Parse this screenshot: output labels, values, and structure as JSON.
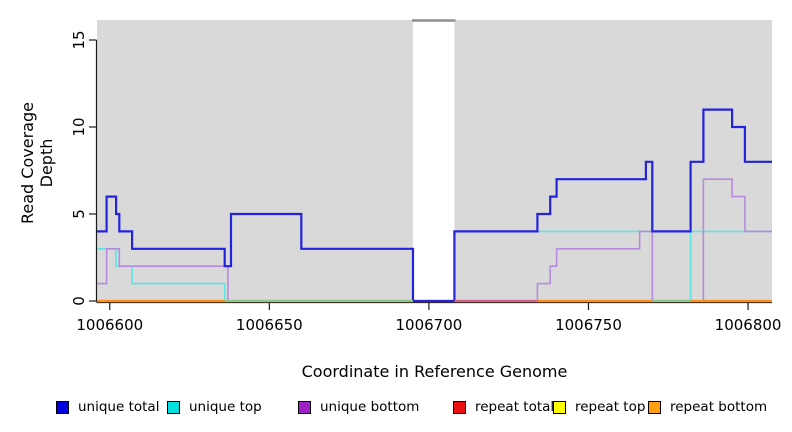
{
  "chart_data": {
    "type": "line",
    "subtype": "step-coverage",
    "title": "",
    "xlabel": "Coordinate in Reference Genome",
    "ylabel": "Read Coverage Depth",
    "xlim": [
      1006596,
      1006807.5
    ],
    "ylim": [
      0,
      16.15
    ],
    "xticks": [
      1006600,
      1006650,
      1006700,
      1006750,
      1006800
    ],
    "yticks": [
      0,
      5,
      10,
      15
    ],
    "grid": false,
    "legend_position": "bottom",
    "plot_background": "#d9d9d9",
    "gap_lid_color": "#8f8f8f",
    "axis_color": "#1a1a1a",
    "coverage_gap": {
      "from": 1006695,
      "to": 1006708
    },
    "series": [
      {
        "name": "unique total",
        "color": "#2323dc",
        "line_width": 2.2,
        "steps": [
          [
            1006596,
            4
          ],
          [
            1006599,
            6
          ],
          [
            1006602,
            5
          ],
          [
            1006603,
            4
          ],
          [
            1006607,
            3
          ],
          [
            1006636,
            2
          ],
          [
            1006638,
            5
          ],
          [
            1006660,
            3
          ],
          [
            1006695,
            0
          ],
          [
            1006708,
            4
          ],
          [
            1006734,
            5
          ],
          [
            1006738,
            6
          ],
          [
            1006740,
            7
          ],
          [
            1006768,
            8
          ],
          [
            1006770,
            4
          ],
          [
            1006782,
            8
          ],
          [
            1006786,
            11
          ],
          [
            1006795,
            10
          ],
          [
            1006799,
            8
          ]
        ]
      },
      {
        "name": "unique top",
        "color": "#5fe3e3",
        "line_width": 1.6,
        "steps": [
          [
            1006596,
            3
          ],
          [
            1006602,
            2
          ],
          [
            1006607,
            1
          ],
          [
            1006636,
            0
          ],
          [
            1006708,
            4
          ],
          [
            1006770,
            0
          ],
          [
            1006782,
            4
          ]
        ]
      },
      {
        "name": "unique bottom",
        "color": "#b48cdb",
        "line_width": 1.6,
        "steps": [
          [
            1006596,
            1
          ],
          [
            1006599,
            3
          ],
          [
            1006603,
            2
          ],
          [
            1006637,
            0
          ],
          [
            1006734,
            1
          ],
          [
            1006738,
            2
          ],
          [
            1006740,
            3
          ],
          [
            1006766,
            4
          ],
          [
            1006770,
            0
          ],
          [
            1006786,
            7
          ],
          [
            1006795,
            6
          ],
          [
            1006799,
            4
          ]
        ]
      },
      {
        "name": "repeat total",
        "color": "#e81010",
        "line_width": 1.6,
        "steps": [
          [
            1006596,
            0
          ]
        ]
      },
      {
        "name": "repeat top",
        "color": "#ffff00",
        "line_width": 1.6,
        "steps": [
          [
            1006596,
            0
          ]
        ]
      },
      {
        "name": "repeat bottom",
        "color": "#ff9015",
        "line_width": 2.2,
        "steps": [
          [
            1006596,
            0
          ]
        ]
      }
    ],
    "baseline_segments": [
      {
        "from": 1006596,
        "to": 1006636,
        "color": "#ff9015"
      },
      {
        "from": 1006636,
        "to": 1006695,
        "color": "#8cc88c"
      },
      {
        "from": 1006708,
        "to": 1006734,
        "color": "#d4608c"
      },
      {
        "from": 1006734,
        "to": 1006770,
        "color": "#ff9015"
      },
      {
        "from": 1006770,
        "to": 1006782,
        "color": "#8cc88c"
      },
      {
        "from": 1006782,
        "to": 1006807.5,
        "color": "#ff9015"
      }
    ]
  },
  "legend": {
    "items": [
      {
        "label": "unique total",
        "color": "#0000e0"
      },
      {
        "label": "unique top",
        "color": "#00e0e0"
      },
      {
        "label": "unique bottom",
        "color": "#a020c8"
      },
      {
        "label": "repeat total",
        "color": "#e81010"
      },
      {
        "label": "repeat top",
        "color": "#ffff00"
      },
      {
        "label": "repeat bottom",
        "color": "#ffa010"
      }
    ]
  }
}
